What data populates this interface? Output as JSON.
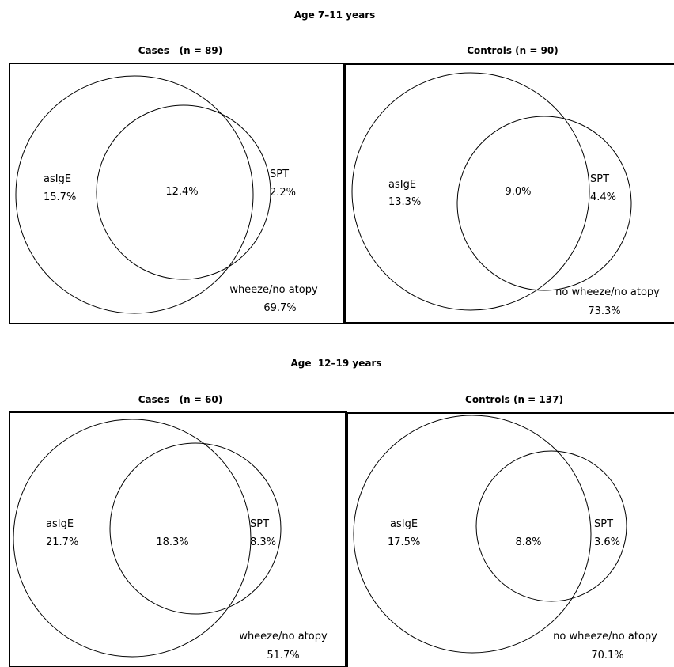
{
  "sections": [
    {
      "title": "Age 7–11 years",
      "panels": [
        {
          "title": "Cases   (n = 89)",
          "big_label": "asIgE",
          "big_pct": "15.7%",
          "overlap_pct": "12.4%",
          "small_label": "SPT",
          "small_pct": "2.2%",
          "outside_label": "wheeze/no atopy",
          "outside_pct": "69.7%"
        },
        {
          "title": "Controls (n = 90)",
          "big_label": "asIgE",
          "big_pct": "13.3%",
          "overlap_pct": "9.0%",
          "small_label": "SPT",
          "small_pct": "4.4%",
          "outside_label": "no wheeze/no atopy",
          "outside_pct": "73.3%"
        }
      ]
    },
    {
      "title": "Age  12–19 years",
      "panels": [
        {
          "title": "Cases   (n = 60)",
          "big_label": "asIgE",
          "big_pct": "21.7%",
          "overlap_pct": "18.3%",
          "small_label": "SPT",
          "small_pct": "8.3%",
          "outside_label": "wheeze/no atopy",
          "outside_pct": "51.7%"
        },
        {
          "title": "Controls (n = 137)",
          "big_label": "asIgE",
          "big_pct": "17.5%",
          "overlap_pct": "8.8%",
          "small_label": "SPT",
          "small_pct": "3.6%",
          "outside_label": "no wheeze/no atopy",
          "outside_pct": "70.1%"
        }
      ]
    }
  ]
}
